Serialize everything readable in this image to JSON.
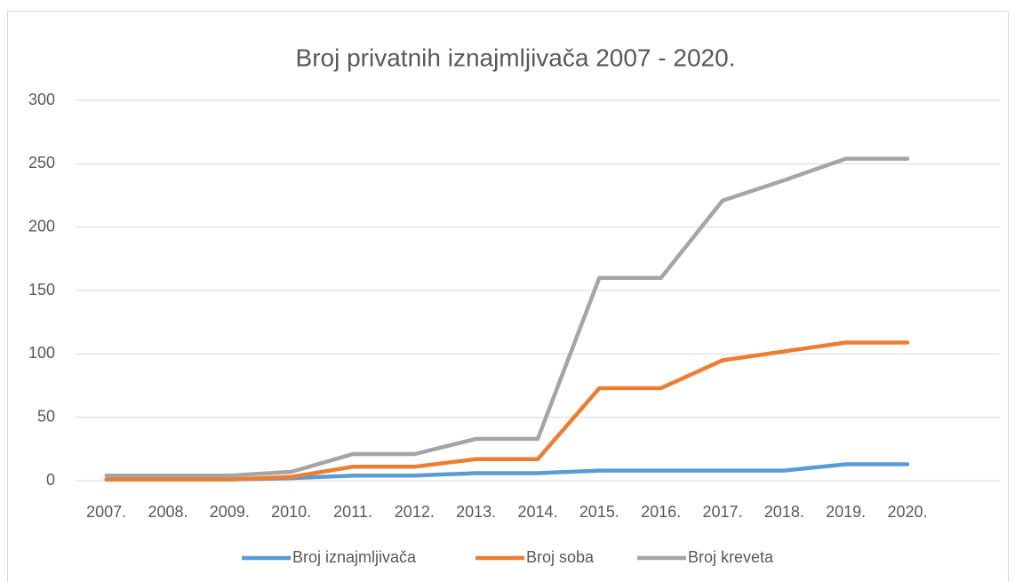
{
  "chart_data": {
    "type": "line",
    "title": "Broj privatnih iznajmljivača 2007 - 2020.",
    "categories": [
      "2007.",
      "2008.",
      "2009.",
      "2010.",
      "2011.",
      "2012.",
      "2013.",
      "2014.",
      "2015.",
      "2016.",
      "2017.",
      "2018.",
      "2019.",
      "2020.",
      null
    ],
    "series": [
      {
        "name": "Broj iznajmljivača",
        "color": "#5b9bd5",
        "values": [
          1,
          1,
          1,
          2,
          4,
          4,
          6,
          6,
          8,
          8,
          8,
          8,
          13,
          13,
          null
        ]
      },
      {
        "name": "Broj soba",
        "color": "#ed7d31",
        "values": [
          1,
          1,
          1,
          3,
          11,
          11,
          17,
          17,
          73,
          73,
          95,
          102,
          109,
          109,
          null
        ]
      },
      {
        "name": "Broj kreveta",
        "color": "#a5a5a5",
        "values": [
          4,
          4,
          4,
          7,
          21,
          21,
          33,
          33,
          160,
          160,
          221,
          237,
          254,
          254,
          null
        ]
      }
    ],
    "ylim": [
      0,
      300
    ],
    "yticks": [
      0,
      50,
      100,
      150,
      200,
      250,
      300
    ],
    "grid": true,
    "legend": "bottom"
  }
}
